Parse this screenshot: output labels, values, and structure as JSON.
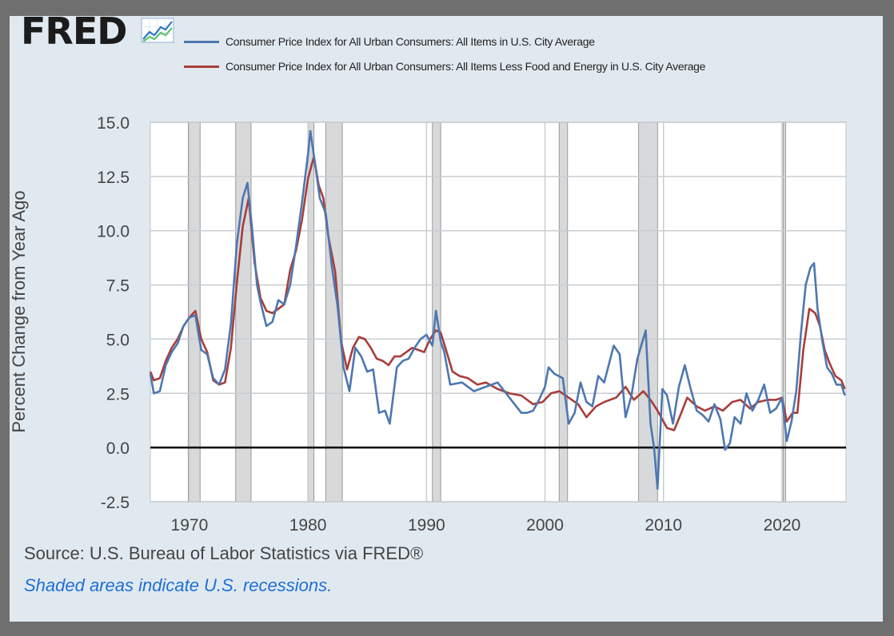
{
  "brand": {
    "logo_text": "FRED",
    "icon": "line-chart-icon"
  },
  "colors": {
    "background": "#e1e9f0",
    "series_1": "#4d77b1",
    "series_2": "#a83d3a",
    "recession": "#d8d9da",
    "grid": "#c9cdd2"
  },
  "chart_data": {
    "type": "line",
    "title": "",
    "xlabel": "",
    "ylabel": "Percent Change from Year Ago",
    "xlim": [
      1966.7,
      2025.4
    ],
    "ylim": [
      -2.5,
      15.0
    ],
    "yticks": [
      "-2.5",
      "0.0",
      "2.5",
      "5.0",
      "7.5",
      "10.0",
      "12.5",
      "15.0"
    ],
    "xticks": [
      "1970",
      "1980",
      "1990",
      "2000",
      "2010",
      "2020"
    ],
    "zero_line": 0,
    "recessions": [
      [
        1969.9,
        1970.9
      ],
      [
        1973.9,
        1975.2
      ],
      [
        1980.0,
        1980.5
      ],
      [
        1981.5,
        1982.9
      ],
      [
        1990.5,
        1991.2
      ],
      [
        2001.2,
        2001.9
      ],
      [
        2007.9,
        2009.5
      ],
      [
        2020.1,
        2020.3
      ]
    ],
    "series": [
      {
        "name": "Consumer Price Index for All Urban Consumers: All Items in U.S. City Average",
        "x": [
          1966.7,
          1967.0,
          1967.5,
          1968.0,
          1968.5,
          1969.0,
          1969.5,
          1970.0,
          1970.5,
          1971.0,
          1971.5,
          1972.0,
          1972.5,
          1973.0,
          1973.5,
          1974.0,
          1974.5,
          1974.9,
          1975.3,
          1975.7,
          1976.0,
          1976.5,
          1977.0,
          1977.5,
          1978.0,
          1978.5,
          1979.0,
          1979.5,
          1980.0,
          1980.2,
          1980.6,
          1981.0,
          1981.5,
          1982.0,
          1982.5,
          1983.0,
          1983.5,
          1984.0,
          1984.5,
          1985.0,
          1985.5,
          1986.0,
          1986.5,
          1986.9,
          1987.5,
          1988.0,
          1988.5,
          1989.0,
          1989.5,
          1990.0,
          1990.5,
          1990.8,
          1991.2,
          1991.5,
          1992.0,
          1993.0,
          1994.0,
          1995.0,
          1996.0,
          1997.0,
          1998.0,
          1998.5,
          1999.0,
          1999.5,
          2000.0,
          2000.3,
          2000.8,
          2001.5,
          2002.0,
          2002.5,
          2003.0,
          2003.5,
          2004.0,
          2004.5,
          2005.0,
          2005.8,
          2006.3,
          2006.8,
          2007.3,
          2007.8,
          2008.5,
          2008.9,
          2009.2,
          2009.5,
          2009.9,
          2010.3,
          2010.8,
          2011.3,
          2011.8,
          2012.3,
          2012.8,
          2013.3,
          2013.8,
          2014.3,
          2014.8,
          2015.2,
          2015.6,
          2016.0,
          2016.5,
          2017.0,
          2017.5,
          2018.0,
          2018.5,
          2019.0,
          2019.5,
          2020.0,
          2020.4,
          2020.8,
          2021.2,
          2021.6,
          2022.0,
          2022.4,
          2022.7,
          2023.0,
          2023.4,
          2023.8,
          2024.2,
          2024.6,
          2025.0,
          2025.3
        ],
        "y": [
          3.4,
          2.5,
          2.6,
          3.8,
          4.4,
          4.8,
          5.6,
          6.0,
          6.1,
          4.5,
          4.3,
          3.2,
          2.9,
          3.6,
          5.7,
          9.4,
          11.5,
          12.2,
          10.0,
          7.5,
          6.7,
          5.6,
          5.8,
          6.8,
          6.6,
          7.5,
          9.3,
          11.3,
          13.5,
          14.6,
          13.1,
          11.5,
          10.8,
          8.4,
          6.5,
          3.7,
          2.6,
          4.6,
          4.2,
          3.5,
          3.6,
          1.6,
          1.7,
          1.1,
          3.7,
          4.0,
          4.1,
          4.6,
          5.0,
          5.2,
          4.7,
          6.3,
          4.9,
          4.4,
          2.9,
          3.0,
          2.6,
          2.8,
          3.0,
          2.3,
          1.6,
          1.6,
          1.7,
          2.2,
          2.8,
          3.7,
          3.4,
          3.2,
          1.1,
          1.6,
          3.0,
          2.1,
          1.9,
          3.3,
          3.0,
          4.7,
          4.3,
          1.4,
          2.4,
          4.1,
          5.4,
          1.1,
          0.0,
          -1.9,
          2.7,
          2.4,
          1.1,
          2.8,
          3.8,
          2.7,
          1.7,
          1.5,
          1.2,
          2.0,
          1.3,
          -0.1,
          0.2,
          1.4,
          1.1,
          2.5,
          1.7,
          2.2,
          2.9,
          1.6,
          1.8,
          2.3,
          0.3,
          1.2,
          2.6,
          5.3,
          7.5,
          8.3,
          8.5,
          6.4,
          4.9,
          3.7,
          3.4,
          2.9,
          2.9,
          2.4
        ]
      },
      {
        "name": "Consumer Price Index for All Urban Consumers: All Items Less Food and Energy in U.S. City Average",
        "x": [
          1966.7,
          1967.0,
          1967.5,
          1968.0,
          1968.5,
          1969.0,
          1969.5,
          1970.0,
          1970.5,
          1971.0,
          1971.5,
          1972.0,
          1972.5,
          1973.0,
          1973.5,
          1974.0,
          1974.5,
          1975.0,
          1975.5,
          1976.0,
          1976.5,
          1977.0,
          1977.5,
          1978.0,
          1978.5,
          1979.0,
          1979.5,
          1980.0,
          1980.5,
          1980.9,
          1981.3,
          1981.7,
          1982.3,
          1982.8,
          1983.3,
          1983.8,
          1984.3,
          1984.8,
          1985.3,
          1985.8,
          1986.3,
          1986.8,
          1987.3,
          1987.8,
          1988.3,
          1988.8,
          1989.3,
          1989.8,
          1990.3,
          1990.8,
          1991.2,
          1991.6,
          1992.2,
          1992.8,
          1993.5,
          1994.3,
          1995.0,
          1996.0,
          1997.0,
          1998.0,
          1999.0,
          1999.8,
          2000.5,
          2001.2,
          2002.0,
          2002.8,
          2003.5,
          2004.3,
          2005.0,
          2006.0,
          2006.8,
          2007.5,
          2008.3,
          2008.9,
          2009.5,
          2010.3,
          2010.9,
          2011.5,
          2012.0,
          2012.8,
          2013.5,
          2014.3,
          2015.0,
          2015.8,
          2016.5,
          2017.3,
          2018.0,
          2018.8,
          2019.5,
          2020.0,
          2020.4,
          2020.9,
          2021.3,
          2021.8,
          2022.3,
          2022.8,
          2023.2,
          2023.6,
          2024.0,
          2024.5,
          2025.0,
          2025.3
        ],
        "y": [
          3.5,
          3.1,
          3.2,
          4.0,
          4.6,
          5.0,
          5.6,
          6.0,
          6.3,
          5.0,
          4.4,
          3.1,
          2.9,
          3.0,
          4.6,
          7.6,
          10.2,
          11.5,
          8.5,
          6.9,
          6.3,
          6.2,
          6.4,
          6.6,
          8.2,
          9.1,
          10.5,
          12.4,
          13.4,
          12.1,
          11.5,
          9.8,
          8.1,
          4.9,
          3.6,
          4.6,
          5.1,
          5.0,
          4.6,
          4.1,
          4.0,
          3.8,
          4.2,
          4.2,
          4.4,
          4.6,
          4.5,
          4.4,
          5.0,
          5.4,
          5.3,
          4.6,
          3.5,
          3.3,
          3.2,
          2.9,
          3.0,
          2.7,
          2.5,
          2.4,
          2.0,
          2.1,
          2.5,
          2.6,
          2.3,
          2.0,
          1.4,
          1.9,
          2.1,
          2.3,
          2.8,
          2.2,
          2.6,
          2.2,
          1.7,
          0.9,
          0.8,
          1.6,
          2.3,
          1.9,
          1.7,
          1.9,
          1.7,
          2.1,
          2.2,
          1.8,
          2.1,
          2.2,
          2.2,
          2.3,
          1.2,
          1.6,
          1.6,
          4.5,
          6.4,
          6.2,
          5.6,
          4.5,
          3.9,
          3.3,
          3.1,
          2.7
        ]
      }
    ]
  },
  "footer": {
    "source": "Source: U.S. Bureau of Labor Statistics via FRED®",
    "note": "Shaded areas indicate U.S. recessions."
  }
}
